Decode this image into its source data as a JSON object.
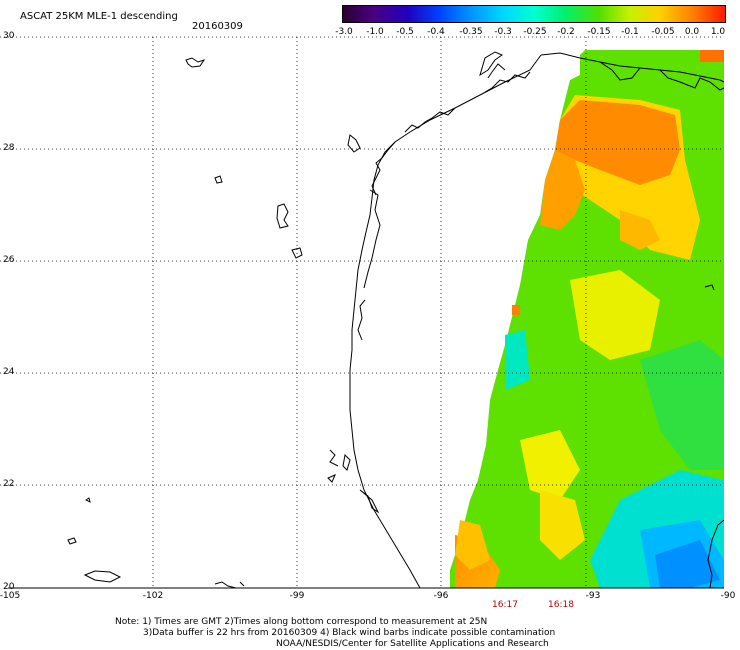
{
  "title": "ASCAT 25KM MLE-1 descending",
  "date": "20160309",
  "colorbar": {
    "labels": [
      "-3.0",
      "-1.0",
      "-0.5",
      "-0.4",
      "-0.35",
      "-0.3",
      "-0.25",
      "-0.2",
      "-0.15",
      "-0.1",
      "-0.05",
      "0.0",
      "1.0"
    ],
    "colors": [
      "#2a0030",
      "#4a0080",
      "#2000c0",
      "#0040ff",
      "#0090ff",
      "#00d8ff",
      "#00ffd0",
      "#00f070",
      "#50e000",
      "#c8f000",
      "#ffd000",
      "#ff7a00",
      "#ff1a00"
    ]
  },
  "latitude_labels": [
    "30",
    "28",
    "26",
    "24",
    "22",
    "20"
  ],
  "longitude_labels": [
    "-105",
    "-102",
    "-99",
    "-96",
    "-93",
    "-90"
  ],
  "pass_times": [
    "16:17",
    "16:18"
  ],
  "notes": [
    "Note: 1) Times are GMT 2)Times along bottom correspond to measurement at 25N",
    "3)Data buffer is 22 hrs from 20160309 4) Black wind barbs indicate possible contamination",
    "NOAA/NESDIS/Center for Satellite Applications and Research"
  ]
}
